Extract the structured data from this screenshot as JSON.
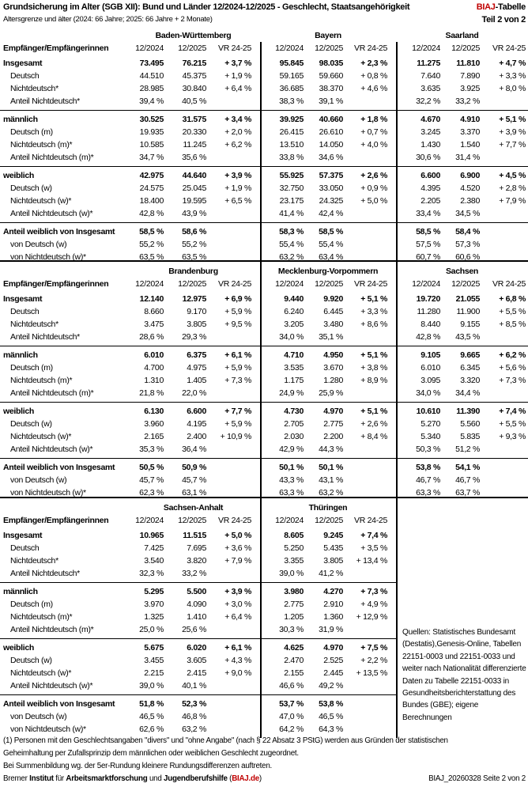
{
  "header": {
    "title": "Grundsicherung im Alter (SGB XII): Bund und Länder 12/2024-12/2025 - Geschlecht, Staatsangehörigkeit",
    "subtitle": "Altersgrenze und älter (2024: 66 Jahre; 2025: 66 Jahre + 2 Monate)",
    "tag_brand": "BIAJ",
    "tag_rest": "-Tabelle",
    "part": "Teil 2 von 2",
    "brand_color": "#c00000"
  },
  "columns": {
    "label": "Empfänger/Empfängerinnen",
    "c1": "12/2024",
    "c2": "12/2025",
    "c3": "VR 24-25"
  },
  "row_labels": [
    [
      "Insgesamt",
      "Deutsch",
      "Nichtdeutsch*",
      "Anteil Nichtdeutsch*"
    ],
    [
      "männlich",
      "Deutsch (m)",
      "Nichtdeutsch (m)*",
      "Anteil Nichtdeutsch (m)*"
    ],
    [
      "weiblich",
      "Deutsch (w)",
      "Nichtdeutsch (w)*",
      "Anteil Nichtdeutsch (w)*"
    ],
    [
      "Anteil weiblich von Insgesamt",
      "von Deutsch (w)",
      "von Nichtdeutsch (w)*"
    ]
  ],
  "blocks": [
    {
      "states": [
        {
          "name": "Baden-Württemberg",
          "groups": [
            [
              [
                "73.495",
                "76.215",
                "+ 3,7 %"
              ],
              [
                "44.510",
                "45.375",
                "+ 1,9 %"
              ],
              [
                "28.985",
                "30.840",
                "+ 6,4 %"
              ],
              [
                "39,4 %",
                "40,5 %",
                ""
              ]
            ],
            [
              [
                "30.525",
                "31.575",
                "+ 3,4 %"
              ],
              [
                "19.935",
                "20.330",
                "+ 2,0 %"
              ],
              [
                "10.585",
                "11.245",
                "+ 6,2 %"
              ],
              [
                "34,7 %",
                "35,6 %",
                ""
              ]
            ],
            [
              [
                "42.975",
                "44.640",
                "+ 3,9 %"
              ],
              [
                "24.575",
                "25.045",
                "+ 1,9 %"
              ],
              [
                "18.400",
                "19.595",
                "+ 6,5 %"
              ],
              [
                "42,8 %",
                "43,9 %",
                ""
              ]
            ],
            [
              [
                "58,5 %",
                "58,6 %",
                ""
              ],
              [
                "55,2 %",
                "55,2 %",
                ""
              ],
              [
                "63,5 %",
                "63,5 %",
                ""
              ]
            ]
          ]
        },
        {
          "name": "Bayern",
          "groups": [
            [
              [
                "95.845",
                "98.035",
                "+ 2,3 %"
              ],
              [
                "59.165",
                "59.660",
                "+ 0,8 %"
              ],
              [
                "36.685",
                "38.370",
                "+ 4,6 %"
              ],
              [
                "38,3 %",
                "39,1 %",
                ""
              ]
            ],
            [
              [
                "39.925",
                "40.660",
                "+ 1,8 %"
              ],
              [
                "26.415",
                "26.610",
                "+ 0,7 %"
              ],
              [
                "13.510",
                "14.050",
                "+ 4,0 %"
              ],
              [
                "33,8 %",
                "34,6 %",
                ""
              ]
            ],
            [
              [
                "55.925",
                "57.375",
                "+ 2,6 %"
              ],
              [
                "32.750",
                "33.050",
                "+ 0,9 %"
              ],
              [
                "23.175",
                "24.325",
                "+ 5,0 %"
              ],
              [
                "41,4 %",
                "42,4 %",
                ""
              ]
            ],
            [
              [
                "58,3 %",
                "58,5 %",
                ""
              ],
              [
                "55,4 %",
                "55,4 %",
                ""
              ],
              [
                "63,2 %",
                "63,4 %",
                ""
              ]
            ]
          ]
        },
        {
          "name": "Saarland",
          "groups": [
            [
              [
                "11.275",
                "11.810",
                "+ 4,7 %"
              ],
              [
                "7.640",
                "7.890",
                "+ 3,3 %"
              ],
              [
                "3.635",
                "3.925",
                "+ 8,0 %"
              ],
              [
                "32,2 %",
                "33,2 %",
                ""
              ]
            ],
            [
              [
                "4.670",
                "4.910",
                "+ 5,1 %"
              ],
              [
                "3.245",
                "3.370",
                "+ 3,9 %"
              ],
              [
                "1.430",
                "1.540",
                "+ 7,7 %"
              ],
              [
                "30,6 %",
                "31,4 %",
                ""
              ]
            ],
            [
              [
                "6.600",
                "6.900",
                "+ 4,5 %"
              ],
              [
                "4.395",
                "4.520",
                "+ 2,8 %"
              ],
              [
                "2.205",
                "2.380",
                "+ 7,9 %"
              ],
              [
                "33,4 %",
                "34,5 %",
                ""
              ]
            ],
            [
              [
                "58,5 %",
                "58,4 %",
                ""
              ],
              [
                "57,5 %",
                "57,3 %",
                ""
              ],
              [
                "60,7 %",
                "60,6 %",
                ""
              ]
            ]
          ]
        }
      ]
    },
    {
      "states": [
        {
          "name": "Brandenburg",
          "groups": [
            [
              [
                "12.140",
                "12.975",
                "+ 6,9 %"
              ],
              [
                "8.660",
                "9.170",
                "+ 5,9 %"
              ],
              [
                "3.475",
                "3.805",
                "+ 9,5 %"
              ],
              [
                "28,6 %",
                "29,3 %",
                ""
              ]
            ],
            [
              [
                "6.010",
                "6.375",
                "+ 6,1 %"
              ],
              [
                "4.700",
                "4.975",
                "+ 5,9 %"
              ],
              [
                "1.310",
                "1.405",
                "+ 7,3 %"
              ],
              [
                "21,8 %",
                "22,0 %",
                ""
              ]
            ],
            [
              [
                "6.130",
                "6.600",
                "+ 7,7 %"
              ],
              [
                "3.960",
                "4.195",
                "+ 5,9 %"
              ],
              [
                "2.165",
                "2.400",
                "+ 10,9 %"
              ],
              [
                "35,3 %",
                "36,4 %",
                ""
              ]
            ],
            [
              [
                "50,5 %",
                "50,9 %",
                ""
              ],
              [
                "45,7 %",
                "45,7 %",
                ""
              ],
              [
                "62,3 %",
                "63,1 %",
                ""
              ]
            ]
          ]
        },
        {
          "name": "Mecklenburg-Vorpommern",
          "groups": [
            [
              [
                "9.440",
                "9.920",
                "+ 5,1 %"
              ],
              [
                "6.240",
                "6.445",
                "+ 3,3 %"
              ],
              [
                "3.205",
                "3.480",
                "+ 8,6 %"
              ],
              [
                "34,0 %",
                "35,1 %",
                ""
              ]
            ],
            [
              [
                "4.710",
                "4.950",
                "+ 5,1 %"
              ],
              [
                "3.535",
                "3.670",
                "+ 3,8 %"
              ],
              [
                "1.175",
                "1.280",
                "+ 8,9 %"
              ],
              [
                "24,9 %",
                "25,9 %",
                ""
              ]
            ],
            [
              [
                "4.730",
                "4.970",
                "+ 5,1 %"
              ],
              [
                "2.705",
                "2.775",
                "+ 2,6 %"
              ],
              [
                "2.030",
                "2.200",
                "+ 8,4 %"
              ],
              [
                "42,9 %",
                "44,3 %",
                ""
              ]
            ],
            [
              [
                "50,1 %",
                "50,1 %",
                ""
              ],
              [
                "43,3 %",
                "43,1 %",
                ""
              ],
              [
                "63,3 %",
                "63,2 %",
                ""
              ]
            ]
          ]
        },
        {
          "name": "Sachsen",
          "groups": [
            [
              [
                "19.720",
                "21.055",
                "+ 6,8 %"
              ],
              [
                "11.280",
                "11.900",
                "+ 5,5 %"
              ],
              [
                "8.440",
                "9.155",
                "+ 8,5 %"
              ],
              [
                "42,8 %",
                "43,5 %",
                ""
              ]
            ],
            [
              [
                "9.105",
                "9.665",
                "+ 6,2 %"
              ],
              [
                "6.010",
                "6.345",
                "+ 5,6 %"
              ],
              [
                "3.095",
                "3.320",
                "+ 7,3 %"
              ],
              [
                "34,0 %",
                "34,4 %",
                ""
              ]
            ],
            [
              [
                "10.610",
                "11.390",
                "+ 7,4 %"
              ],
              [
                "5.270",
                "5.560",
                "+ 5,5 %"
              ],
              [
                "5.340",
                "5.835",
                "+ 9,3 %"
              ],
              [
                "50,3 %",
                "51,2 %",
                ""
              ]
            ],
            [
              [
                "53,8 %",
                "54,1 %",
                ""
              ],
              [
                "46,7 %",
                "46,7 %",
                ""
              ],
              [
                "63,3 %",
                "63,7 %",
                ""
              ]
            ]
          ]
        }
      ]
    },
    {
      "states": [
        {
          "name": "Sachsen-Anhalt",
          "groups": [
            [
              [
                "10.965",
                "11.515",
                "+ 5,0 %"
              ],
              [
                "7.425",
                "7.695",
                "+ 3,6 %"
              ],
              [
                "3.540",
                "3.820",
                "+ 7,9 %"
              ],
              [
                "32,3 %",
                "33,2 %",
                ""
              ]
            ],
            [
              [
                "5.295",
                "5.500",
                "+ 3,9 %"
              ],
              [
                "3.970",
                "4.090",
                "+ 3,0 %"
              ],
              [
                "1.325",
                "1.410",
                "+ 6,4 %"
              ],
              [
                "25,0 %",
                "25,6 %",
                ""
              ]
            ],
            [
              [
                "5.675",
                "6.020",
                "+ 6,1 %"
              ],
              [
                "3.455",
                "3.605",
                "+ 4,3 %"
              ],
              [
                "2.215",
                "2.415",
                "+ 9,0 %"
              ],
              [
                "39,0 %",
                "40,1 %",
                ""
              ]
            ],
            [
              [
                "51,8 %",
                "52,3 %",
                ""
              ],
              [
                "46,5 %",
                "46,8 %",
                ""
              ],
              [
                "62,6 %",
                "63,2 %",
                ""
              ]
            ]
          ]
        },
        {
          "name": "Thüringen",
          "groups": [
            [
              [
                "8.605",
                "9.245",
                "+ 7,4 %"
              ],
              [
                "5.250",
                "5.435",
                "+ 3,5 %"
              ],
              [
                "3.355",
                "3.805",
                "+ 13,4 %"
              ],
              [
                "39,0 %",
                "41,2 %",
                ""
              ]
            ],
            [
              [
                "3.980",
                "4.270",
                "+ 7,3 %"
              ],
              [
                "2.775",
                "2.910",
                "+ 4,9 %"
              ],
              [
                "1.205",
                "1.360",
                "+ 12,9 %"
              ],
              [
                "30,3 %",
                "31,9 %",
                ""
              ]
            ],
            [
              [
                "4.625",
                "4.970",
                "+ 7,5 %"
              ],
              [
                "2.470",
                "2.525",
                "+ 2,2 %"
              ],
              [
                "2.155",
                "2.445",
                "+ 13,5 %"
              ],
              [
                "46,6 %",
                "49,2 %",
                ""
              ]
            ],
            [
              [
                "53,7 %",
                "53,8 %",
                ""
              ],
              [
                "47,0 %",
                "46,5 %",
                ""
              ],
              [
                "64,2 %",
                "64,3 %",
                ""
              ]
            ]
          ]
        }
      ]
    }
  ],
  "sources": "Quellen: Statistisches Bundesamt (Destatis),Genesis-Online, Tabellen 22151-0003 und 22151-0033 und weiter nach Nationalität differenzierte Daten zu Tabelle 22151-0033 in Gesundheitsberichterstattung des Bundes (GBE); eigene Berechnungen",
  "footer": {
    "note1": "(1) Personen mit den Geschlechtsangaben \"divers\" und \"ohne Angabe\" (nach § 22 Absatz 3 PStG) werden aus Gründen der statistischen",
    "note2": "Geheimhaltung per Zufallsprinzip dem männlichen oder weiblichen Geschlecht zugeordnet.",
    "note3": "Bei Summenbildung wg. der 5er-Rundung kleinere Rundungsdifferenzen auftreten.",
    "org_parts": [
      "Bremer ",
      "Institut",
      " für ",
      "Arbeitsmarktforschung",
      " und ",
      "Jugendberufshilfe",
      " ("
    ],
    "org_link": "BIAJ.de",
    "org_close": ")",
    "doc_id": "BIAJ_20260328 Seite 2 von 2"
  }
}
